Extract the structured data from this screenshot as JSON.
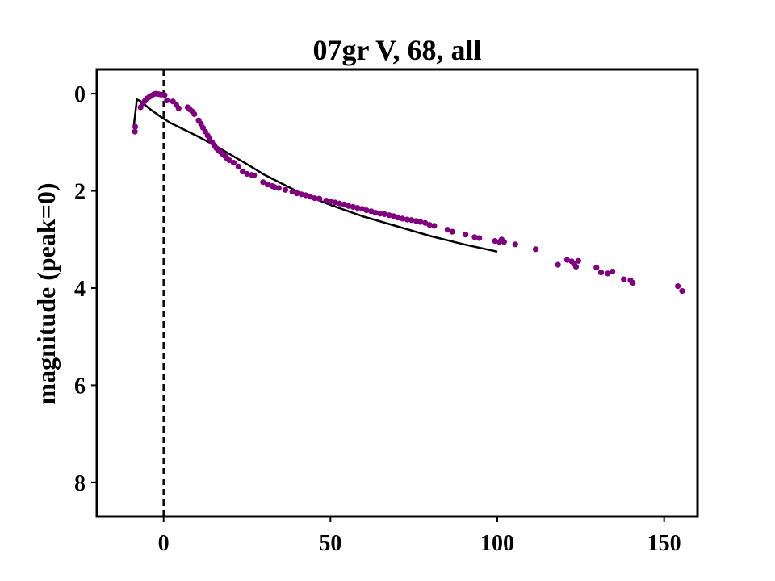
{
  "chart_data": {
    "type": "scatter",
    "title": "07gr V, 68, all",
    "xlabel": "",
    "ylabel": "magnitude (peak=0)",
    "xlim": [
      -20,
      160
    ],
    "ylim": [
      8.7,
      -0.5
    ],
    "y_inverted": true,
    "xticks": [
      0,
      50,
      100,
      150
    ],
    "yticks": [
      0,
      2,
      4,
      6,
      8
    ],
    "grid": false,
    "colors": {
      "points": "#800080",
      "model": "#000000",
      "reference_line": "#000000"
    },
    "reference_line": {
      "x": 0,
      "style": "dashed"
    },
    "series": [
      {
        "kind": "points",
        "x": [
          -8.6,
          -8.5,
          -6.9,
          -6.3,
          -5.6,
          -5.0,
          -4.3,
          -3.6,
          -2.9,
          -2.2,
          -1.5,
          -0.8,
          0.3,
          1.0,
          2.8,
          3.8,
          4.5,
          7.2,
          7.8,
          8.5,
          9.2,
          10.5,
          11.2,
          11.8,
          12.5,
          13.2,
          13.8,
          14.5,
          15.2,
          15.8,
          16.4,
          17.1,
          17.7,
          18.4,
          19.0,
          19.7,
          21.0,
          22.4,
          23.7,
          25.0,
          26.4,
          27.1,
          29.8,
          31.2,
          32.5,
          33.2,
          34.5,
          36.5,
          38.6,
          39.9,
          41.3,
          42.6,
          44.0,
          45.3,
          46.7,
          48.7,
          50.0,
          51.4,
          52.7,
          54.1,
          55.4,
          56.8,
          58.1,
          59.5,
          60.8,
          62.2,
          63.5,
          64.9,
          66.2,
          67.6,
          68.9,
          70.3,
          71.6,
          73.0,
          74.3,
          75.7,
          77.0,
          78.4,
          79.7,
          81.1,
          85.1,
          86.5,
          90.5,
          93.2,
          94.6,
          99.3,
          100.6,
          101.3,
          102.0,
          105.4,
          111.5,
          118.2,
          120.9,
          122.3,
          123.0,
          123.6,
          124.3,
          129.7,
          131.1,
          133.1,
          134.5,
          137.9,
          139.9,
          140.6,
          154.1,
          155.4
        ],
        "y": [
          0.78,
          0.68,
          0.28,
          0.2,
          0.15,
          0.1,
          0.07,
          0.04,
          0.01,
          0.0,
          0.01,
          0.02,
          0.03,
          0.14,
          0.16,
          0.23,
          0.3,
          0.28,
          0.32,
          0.36,
          0.42,
          0.55,
          0.62,
          0.7,
          0.78,
          0.86,
          0.93,
          1.0,
          1.06,
          1.12,
          1.16,
          1.2,
          1.24,
          1.28,
          1.33,
          1.37,
          1.42,
          1.5,
          1.6,
          1.65,
          1.67,
          1.68,
          1.82,
          1.87,
          1.9,
          1.92,
          1.94,
          1.98,
          2.02,
          2.05,
          2.07,
          2.09,
          2.12,
          2.15,
          2.16,
          2.2,
          2.22,
          2.24,
          2.26,
          2.28,
          2.31,
          2.33,
          2.35,
          2.37,
          2.4,
          2.42,
          2.45,
          2.47,
          2.48,
          2.5,
          2.52,
          2.55,
          2.57,
          2.59,
          2.6,
          2.62,
          2.64,
          2.66,
          2.7,
          2.72,
          2.8,
          2.84,
          2.9,
          2.95,
          2.97,
          3.03,
          3.05,
          3.0,
          3.05,
          3.1,
          3.2,
          3.52,
          3.42,
          3.45,
          3.5,
          3.56,
          3.44,
          3.58,
          3.68,
          3.7,
          3.66,
          3.82,
          3.84,
          3.89,
          3.96,
          4.06
        ]
      },
      {
        "kind": "line",
        "x": [
          -9.0,
          -8.0,
          -7.0,
          -4.0,
          -1.0,
          2.0,
          5.0,
          10.0,
          15.0,
          20.0,
          25.0,
          30.0,
          40.0,
          50.0,
          60.0,
          70.0,
          80.0,
          90.0,
          100.0
        ],
        "y": [
          0.7,
          0.12,
          0.15,
          0.32,
          0.47,
          0.6,
          0.7,
          0.87,
          1.05,
          1.25,
          1.45,
          1.66,
          2.01,
          2.29,
          2.53,
          2.73,
          2.93,
          3.1,
          3.25
        ]
      }
    ]
  }
}
